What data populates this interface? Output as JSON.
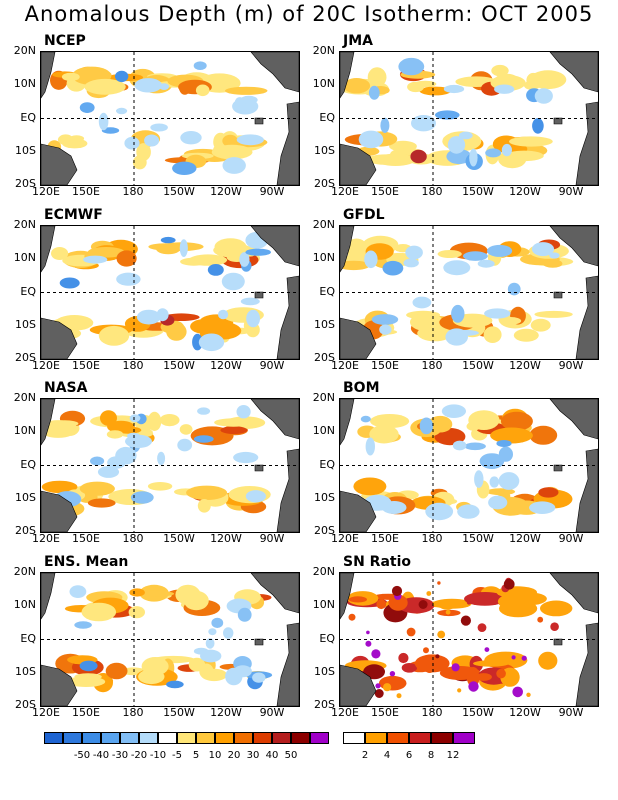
{
  "title": "Anomalous Depth (m) of 20C Isotherm: OCT 2005",
  "lat_labels": [
    "20N",
    "10N",
    "EQ",
    "10S",
    "20S"
  ],
  "lon_labels": [
    "120E",
    "150E",
    "180",
    "150W",
    "120W",
    "90W"
  ],
  "panels": [
    {
      "label": "NCEP"
    },
    {
      "label": "JMA"
    },
    {
      "label": "ECMWF"
    },
    {
      "label": "GFDL"
    },
    {
      "label": "NASA"
    },
    {
      "label": "BOM"
    },
    {
      "label": "ENS. Mean"
    },
    {
      "label": "SN Ratio"
    }
  ],
  "legend_anomaly": {
    "labels": [
      "-50",
      "-40",
      "-30",
      "-20",
      "-10",
      "-5",
      "5",
      "10",
      "20",
      "30",
      "40",
      "50"
    ],
    "colors": [
      "#1e64d2",
      "#2e78dc",
      "#3c8ce6",
      "#5aa5f0",
      "#82bef5",
      "#b4dcfa",
      "#ffffff",
      "#ffe678",
      "#ffc83c",
      "#ffa000",
      "#f06e00",
      "#dc3c00",
      "#b41e1e",
      "#8c0000",
      "#a000c8"
    ]
  },
  "legend_snr": {
    "labels": [
      "2",
      "4",
      "6",
      "8",
      "12"
    ],
    "colors": [
      "#ffffff",
      "#ffa000",
      "#f05000",
      "#c81e1e",
      "#8c0000",
      "#a000c8"
    ]
  },
  "colors": {
    "land": "#606060",
    "dashed_lines": "#000000"
  }
}
